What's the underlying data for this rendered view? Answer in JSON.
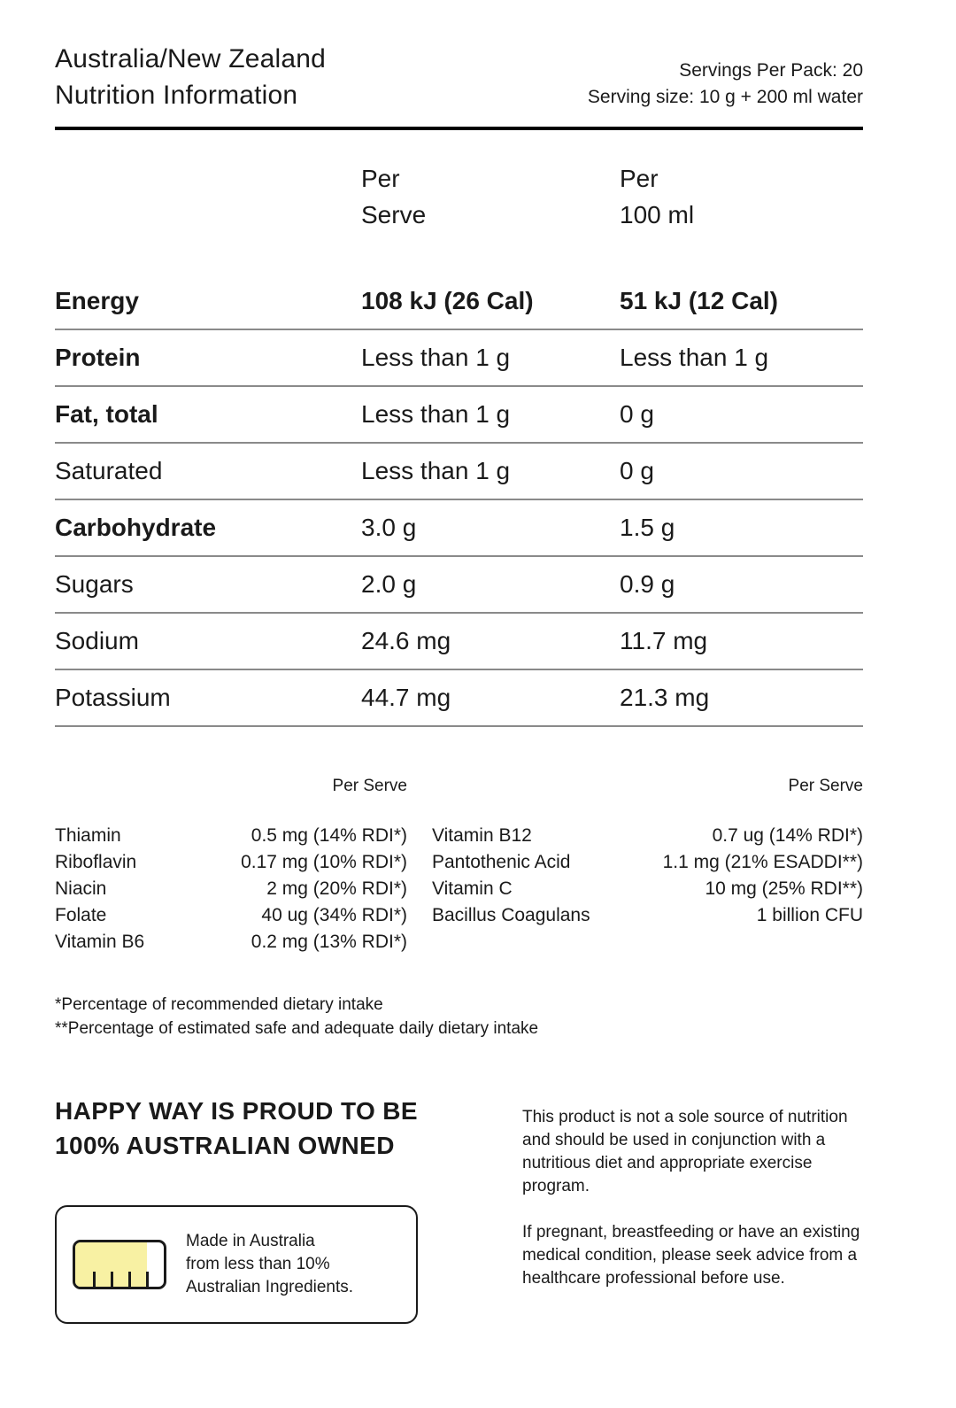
{
  "header": {
    "title_line1": "Australia/New Zealand",
    "title_line2": "Nutrition Information",
    "servings_per_pack": "Servings Per Pack: 20",
    "serving_size": "Serving size: 10 g + 200 ml water"
  },
  "table": {
    "columns": {
      "per_serve_line1": "Per",
      "per_serve_line2": "Serve",
      "per_100ml_line1": "Per",
      "per_100ml_line2": "100 ml"
    },
    "rows": [
      {
        "label": "Energy",
        "per_serve": "108 kJ (26 Cal)",
        "per_100ml": "51 kJ (12 Cal)"
      },
      {
        "label": "Protein",
        "per_serve": "Less than 1 g",
        "per_100ml": "Less than 1 g"
      },
      {
        "label": "Fat, total",
        "per_serve": "Less than 1 g",
        "per_100ml": "0 g"
      },
      {
        "label": "Saturated",
        "per_serve": "Less than 1 g",
        "per_100ml": "0 g"
      },
      {
        "label": "Carbohydrate",
        "per_serve": "3.0 g",
        "per_100ml": "1.5 g"
      },
      {
        "label": "Sugars",
        "per_serve": "2.0 g",
        "per_100ml": "0.9 g"
      },
      {
        "label": "Sodium",
        "per_serve": "24.6 mg",
        "per_100ml": "11.7 mg"
      },
      {
        "label": "Potassium",
        "per_serve": "44.7 mg",
        "per_100ml": "21.3 mg"
      }
    ]
  },
  "vitamins": {
    "per_serve_label_left": "Per Serve",
    "per_serve_label_right": "Per Serve",
    "left": [
      {
        "name": "Thiamin",
        "value": "0.5 mg (14% RDI*)"
      },
      {
        "name": "Riboflavin",
        "value": "0.17 mg (10% RDI*)"
      },
      {
        "name": "Niacin",
        "value": "2 mg (20% RDI*)"
      },
      {
        "name": "Folate",
        "value": "40 ug (34% RDI*)"
      },
      {
        "name": "Vitamin B6",
        "value": "0.2 mg (13% RDI*)"
      }
    ],
    "right": [
      {
        "name": "Vitamin B12",
        "value": "0.7 ug (14% RDI*)"
      },
      {
        "name": "Pantothenic Acid",
        "value": "1.1 mg (21% ESADDI**)"
      },
      {
        "name": "Vitamin C",
        "value": "10 mg (25% RDI**)"
      },
      {
        "name": "Bacillus Coagulans",
        "value": "1 billion CFU"
      }
    ]
  },
  "footnotes": {
    "rdi": "*Percentage of recommended dietary intake",
    "esaddi": "**Percentage of estimated safe and adequate daily dietary intake"
  },
  "bottom": {
    "brand_line1": "HAPPY WAY IS PROUD TO BE",
    "brand_line2": "100% AUSTRALIAN OWNED",
    "made_in_line1": "Made in Australia",
    "made_in_line2": "from less than 10%",
    "made_in_line3": "Australian Ingredients.",
    "paragraph1": "This product is not a sole source of nutrition and should be used in conjunction with a nutritious diet and appropriate exercise program.",
    "paragraph2": "If pregnant, breastfeeding or have an existing medical condition, please seek advice from a healthcare professional before use."
  },
  "colors": {
    "text": "#1a1a1a",
    "separator_gray": "#8a8a8a",
    "rule_black": "#000000",
    "bar_yellow": "#f8f1a3"
  }
}
